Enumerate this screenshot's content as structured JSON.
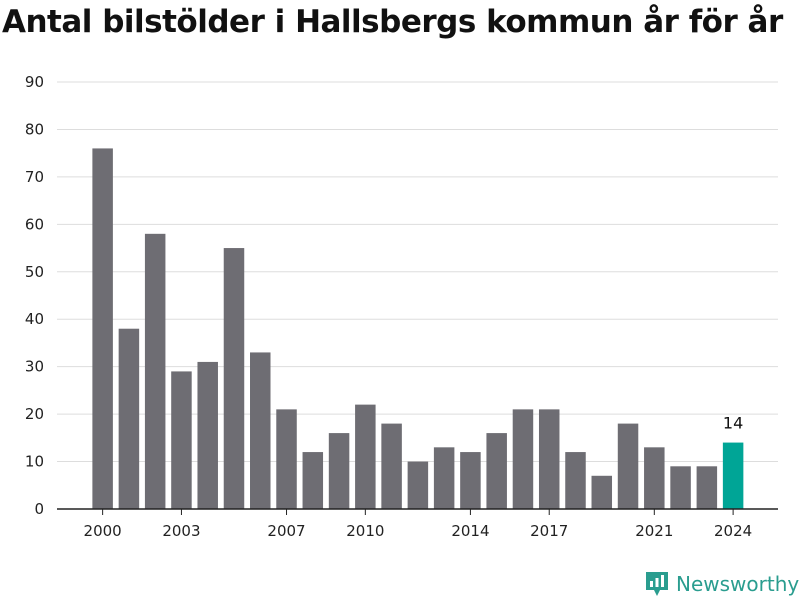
{
  "chart_data": {
    "type": "bar",
    "title": "Antal bilstölder i Hallsbergs kommun år för år",
    "categories": [
      2000,
      2001,
      2002,
      2003,
      2004,
      2005,
      2006,
      2007,
      2008,
      2009,
      2010,
      2011,
      2012,
      2013,
      2014,
      2015,
      2016,
      2017,
      2018,
      2019,
      2020,
      2021,
      2022,
      2023,
      2024
    ],
    "values": [
      76,
      38,
      58,
      29,
      31,
      55,
      33,
      21,
      12,
      16,
      22,
      18,
      10,
      13,
      12,
      16,
      21,
      21,
      12,
      7,
      18,
      13,
      9,
      9,
      14
    ],
    "x_tick_labels": [
      "2000",
      "2003",
      "2007",
      "2010",
      "2014",
      "2017",
      "2021",
      "2024"
    ],
    "y_ticks": [
      0,
      10,
      20,
      30,
      40,
      50,
      60,
      70,
      80,
      90
    ],
    "ylim": [
      0,
      90
    ],
    "grid": true,
    "highlight": {
      "category": 2024,
      "label": "14"
    }
  },
  "colors": {
    "bar": "#6e6d73",
    "highlight": "#00a596",
    "grid": "#dddddd",
    "axis": "#222222"
  },
  "brand": {
    "name": "Newsworthy",
    "icon": "chart-logo-icon"
  }
}
